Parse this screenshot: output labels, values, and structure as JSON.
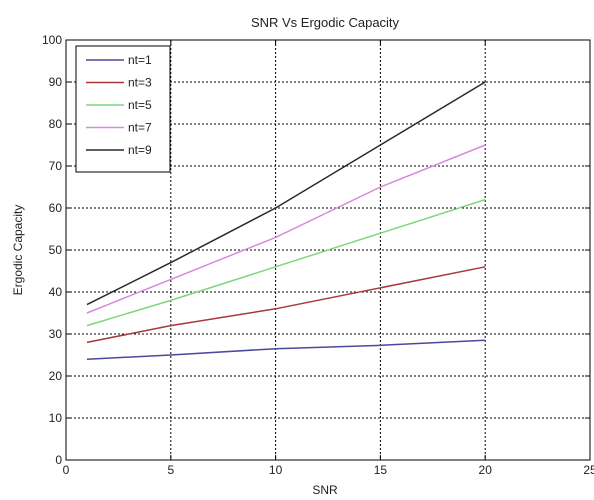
{
  "chart_data": {
    "type": "line",
    "title": "SNR Vs Ergodic Capacity",
    "xlabel": "SNR",
    "ylabel": "Ergodic Capacity",
    "xlim": [
      0,
      25
    ],
    "ylim": [
      0,
      100
    ],
    "xticks": [
      "0",
      "5",
      "10",
      "15",
      "20",
      "25"
    ],
    "yticks": [
      "0",
      "10",
      "20",
      "30",
      "40",
      "50",
      "60",
      "70",
      "80",
      "90",
      "100"
    ],
    "grid": true,
    "legend_position": "top-left",
    "x": [
      1,
      5,
      10,
      15,
      20
    ],
    "series": [
      {
        "name": "nt=1",
        "color": "#4a4a9c",
        "values": [
          24,
          25,
          26.5,
          27.3,
          28.5
        ]
      },
      {
        "name": "nt=3",
        "color": "#a83838",
        "values": [
          28,
          32,
          36,
          41,
          46
        ]
      },
      {
        "name": "nt=5",
        "color": "#7ed67e",
        "values": [
          32,
          38,
          46,
          54,
          62
        ]
      },
      {
        "name": "nt=7",
        "color": "#d98ad9",
        "values": [
          35,
          43,
          53,
          65,
          75
        ]
      },
      {
        "name": "nt=9",
        "color": "#2a2a2a",
        "values": [
          37,
          47,
          60,
          75,
          90
        ]
      }
    ]
  }
}
